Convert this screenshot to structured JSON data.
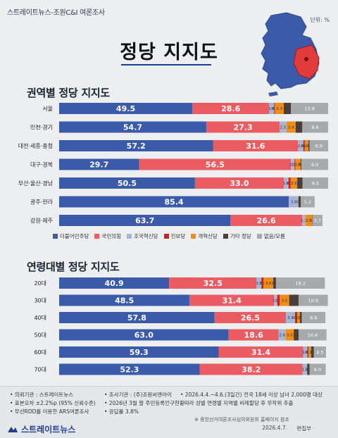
{
  "header": {
    "brand": "스트레이트뉴스-조원C&I 여론조사",
    "title": "정당 지지도",
    "unit": "단위: %"
  },
  "colors": {
    "더불어민주당": "#3b5baa",
    "국민의힘": "#ea5b62",
    "조국혁신당": "#a6b4d6",
    "진보당": "#cc1f1f",
    "개혁신당": "#f08c1a",
    "기타 정당": "#4a4037",
    "없음/모름": "#a7a9ac"
  },
  "legend": {
    "items": [
      {
        "label": "더불어민주당",
        "color": "#3b5baa"
      },
      {
        "label": "국민의힘",
        "color": "#ea5b62"
      },
      {
        "label": "조국혁신당",
        "color": "#a6b4d6"
      },
      {
        "label": "진보당",
        "color": "#cc1f1f"
      },
      {
        "label": "개혁신당",
        "color": "#f08c1a"
      },
      {
        "label": "기타 정당",
        "color": "#4a4037"
      },
      {
        "label": "없음/모름",
        "color": "#a7a9ac"
      }
    ]
  },
  "chart_data": [
    {
      "type": "bar",
      "stacked": true,
      "orientation": "horizontal",
      "title": "권역별 정당 지지도",
      "categories": [
        "서울",
        "인천·경기",
        "대전·세종·충청",
        "대구·경북",
        "부산·울산·경남",
        "광주·전라",
        "강원·제주"
      ],
      "series": [
        {
          "name": "더불어민주당",
          "values": [
            49.5,
            54.7,
            57.2,
            29.7,
            50.5,
            85.4,
            63.7
          ]
        },
        {
          "name": "국민의힘",
          "values": [
            28.6,
            27.3,
            31.6,
            56.5,
            33.0,
            0,
            26.6
          ]
        },
        {
          "name": "조국혁신당",
          "values": [
            1.8,
            2.5,
            2.0,
            1.3,
            1.8,
            3.6,
            1.3
          ]
        },
        {
          "name": "진보당",
          "values": [
            0.3,
            0,
            0.5,
            0.3,
            0.7,
            0,
            0
          ]
        },
        {
          "name": "개혁신당",
          "values": [
            3.3,
            3.4,
            1.4,
            2.0,
            2.5,
            0,
            2.5
          ]
        },
        {
          "name": "기타 정당",
          "values": [
            2.7,
            2.5,
            0.4,
            0.3,
            2.0,
            0.8,
            0.1
          ]
        },
        {
          "name": "없음/모름",
          "values": [
            13.8,
            9.6,
            6.9,
            9.9,
            9.5,
            5.2,
            3.7
          ]
        }
      ],
      "xlim": [
        0,
        100
      ]
    },
    {
      "type": "bar",
      "stacked": true,
      "orientation": "horizontal",
      "title": "연령대별 정당 지지도",
      "categories": [
        "20대",
        "30대",
        "40대",
        "50대",
        "60대",
        "70대"
      ],
      "series": [
        {
          "name": "더불어민주당",
          "values": [
            40.9,
            48.5,
            57.8,
            63.0,
            59.3,
            52.3
          ]
        },
        {
          "name": "국민의힘",
          "values": [
            32.5,
            31.4,
            26.5,
            18.6,
            31.4,
            38.2
          ]
        },
        {
          "name": "조국혁신당",
          "values": [
            1.8,
            1.2,
            3.4,
            2.6,
            1.6,
            1.7
          ]
        },
        {
          "name": "진보당",
          "values": [
            0.8,
            0.9,
            0.8,
            0,
            0.4,
            0
          ]
        },
        {
          "name": "개혁신당",
          "values": [
            3.6,
            3.5,
            1.0,
            3.0,
            1.0,
            0
          ]
        },
        {
          "name": "기타 정당",
          "values": [
            1.0,
            3.5,
            0.7,
            1.8,
            1.0,
            0.9
          ]
        },
        {
          "name": "없음/모름",
          "values": [
            18.2,
            10.9,
            8.8,
            10.4,
            4.5,
            6.0
          ]
        }
      ],
      "xlim": [
        0,
        100
      ]
    }
  ],
  "footer": {
    "lines": [
      "• 의뢰기관 : 스트레이트뉴스",
      "• 조사기관 : (주)조원씨앤아이",
      "• 2026.4.4.~4.6.(3일간) 전국 18세 이상 남녀 2,000명 대상",
      "• 표본오차 ±2.2%p (95% 신뢰수준)",
      "• 2026년 3월 말 주민등록인구현황따라 성별 연령별 지역별 비례할당 후 무작위 추출",
      "• 무선RDD를 이용한 ARS여론조사",
      "• 응답률 3.8%",
      "※ 중앙선거여론조사심의위원회 홈페이지 참조"
    ],
    "logo": "스트레이트뉴스",
    "date": "2026.4.7.",
    "editor": "편집부"
  }
}
